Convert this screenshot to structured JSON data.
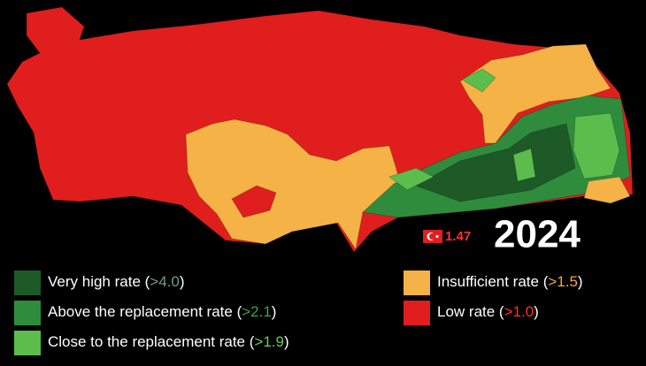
{
  "map": {
    "year": "2024",
    "national_rate": "1.47",
    "legend": [
      {
        "prefix": "Very high rate (",
        "threshold": ">4.0",
        "suffix": ")",
        "color": "#1d5a28",
        "threshold_color": "#6f9f78"
      },
      {
        "prefix": "Above the replacement rate (",
        "threshold": ">2.1",
        "suffix": ")",
        "color": "#2f8c3c",
        "threshold_color": "#3fa34d"
      },
      {
        "prefix": "Close to the replacement rate (",
        "threshold": ">1.9",
        "suffix": ")",
        "color": "#5cbd4c",
        "threshold_color": "#6ccb5a"
      },
      {
        "prefix": "Insufficient rate (",
        "threshold": ">1.5",
        "suffix": ")",
        "color": "#f4b247",
        "threshold_color": "#f4a640"
      },
      {
        "prefix": "Low rate (",
        "threshold": ">1.0",
        "suffix": ")",
        "color": "#e01e1e",
        "threshold_color": "#ff3030"
      }
    ]
  }
}
